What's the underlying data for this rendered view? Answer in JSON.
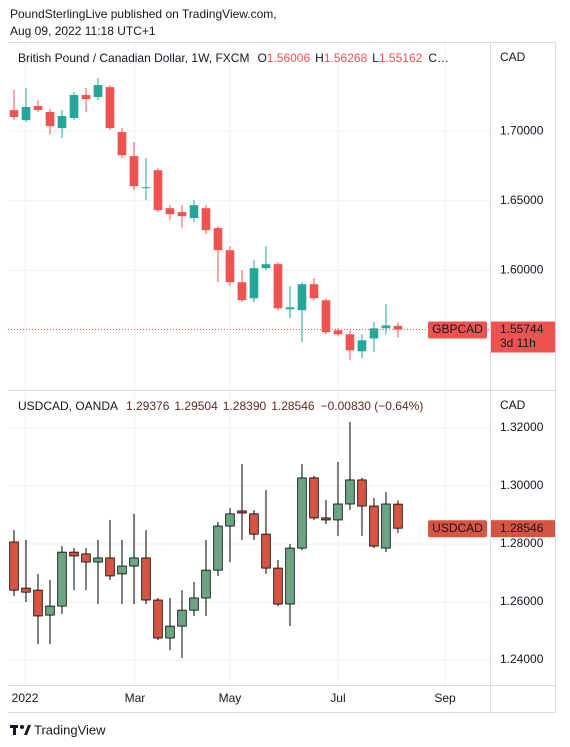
{
  "header": {
    "line1": "PoundSterlingLive published on TradingView.com,",
    "line2": "Aug 09, 2022 11:18 UTC+1"
  },
  "footer": {
    "brand": "TradingView"
  },
  "chart_data": [
    {
      "type": "candlestick",
      "title": "British Pound / Canadian Dollar, 1W, FXCM",
      "legend": [
        {
          "key": "O",
          "value": 1.56006
        },
        {
          "key": "H",
          "value": 1.56268
        },
        {
          "key": "L",
          "value": 1.55162
        }
      ],
      "legend_more": "C…",
      "axis_unit": "CAD",
      "tag": "GBPCAD",
      "countdown": "3d 11h",
      "price_line": true,
      "up_color": "#26a69a",
      "down_color": "#ef5350",
      "border_color": null,
      "text_color": "#ef5350",
      "ylim": [
        1.514,
        1.764
      ],
      "yticks": [
        {
          "value": 1.7,
          "label": "1.70000"
        },
        {
          "value": 1.65,
          "label": "1.65000"
        },
        {
          "value": 1.6,
          "label": "1.60000"
        }
      ],
      "open": [
        1.7151,
        1.7079,
        1.718,
        1.7137,
        1.7022,
        1.7094,
        1.7259,
        1.7245,
        1.7316,
        1.6993,
        1.682,
        1.659,
        1.6719,
        1.6446,
        1.6418,
        1.6375,
        1.6446,
        1.6303,
        1.6144,
        1.5914,
        1.5799,
        1.6015,
        1.6044,
        1.572,
        1.5713,
        1.59,
        1.5785,
        1.5569,
        1.554,
        1.5418,
        1.5511,
        1.5583,
        1.56006
      ],
      "high": [
        1.7295,
        1.7309,
        1.7223,
        1.7158,
        1.7151,
        1.728,
        1.7309,
        1.7381,
        1.7331,
        1.7022,
        1.6921,
        1.6806,
        1.6734,
        1.6468,
        1.6468,
        1.6504,
        1.6468,
        1.6317,
        1.6173,
        1.6001,
        1.6073,
        1.6173,
        1.6058,
        1.5886,
        1.5914,
        1.5943,
        1.5799,
        1.5583,
        1.5569,
        1.554,
        1.5627,
        1.5756,
        1.56268
      ],
      "low": [
        1.7079,
        1.7065,
        1.7137,
        1.6978,
        1.695,
        1.7079,
        1.7137,
        1.7223,
        1.7007,
        1.6806,
        1.6576,
        1.6504,
        1.6418,
        1.636,
        1.6303,
        1.6346,
        1.6259,
        1.5914,
        1.5886,
        1.5771,
        1.5771,
        1.6001,
        1.5713,
        1.5655,
        1.5483,
        1.5785,
        1.554,
        1.5526,
        1.5353,
        1.5368,
        1.5411,
        1.554,
        1.55162
      ],
      "close": [
        1.7101,
        1.7173,
        1.7151,
        1.7036,
        1.7108,
        1.7259,
        1.723,
        1.7331,
        1.7022,
        1.6827,
        1.6604,
        1.6597,
        1.6432,
        1.6403,
        1.6389,
        1.6468,
        1.6288,
        1.6144,
        1.5914,
        1.5785,
        1.6015,
        1.6044,
        1.5727,
        1.5734,
        1.59,
        1.5799,
        1.5555,
        1.554,
        1.5425,
        1.5497,
        1.5583,
        1.5604,
        1.55744
      ]
    },
    {
      "type": "candlestick",
      "title": "USDCAD, OANDA",
      "legend": [
        {
          "value": 1.29376
        },
        {
          "value": 1.29504
        },
        {
          "value": 1.2839,
          "label": "1.28390"
        },
        {
          "value": 1.28546
        }
      ],
      "legend_more": "−0.00830 (−0.64%)",
      "axis_unit": "CAD",
      "tag": "USDCAD",
      "price_line": false,
      "up_color": "#6ba583",
      "down_color": "#d75442",
      "border_color": "#000000",
      "text_color": "#5d2a22",
      "ylim": [
        1.2314,
        1.3331
      ],
      "yticks": [
        {
          "value": 1.32,
          "label": "1.32000"
        },
        {
          "value": 1.3,
          "label": "1.30000"
        },
        {
          "value": 1.28,
          "label": "1.28000"
        },
        {
          "value": 1.26,
          "label": "1.26000"
        },
        {
          "value": 1.24,
          "label": "1.24000"
        }
      ],
      "xlim": [
        -0.5,
        39.67
      ],
      "xticks": [
        {
          "value": 0.92,
          "label": "2022"
        },
        {
          "value": 10.08,
          "label": "Mar"
        },
        {
          "value": 18,
          "label": "May"
        },
        {
          "value": 27,
          "label": "Jul"
        },
        {
          "value": 35.92,
          "label": "Sep"
        }
      ],
      "open": [
        1.2807,
        1.2648,
        1.2641,
        1.2555,
        1.2586,
        1.2772,
        1.2766,
        1.2738,
        1.2752,
        1.2697,
        1.2724,
        1.2752,
        1.2607,
        1.2476,
        1.2517,
        1.2572,
        1.2614,
        1.271,
        1.2862,
        1.2914,
        1.2904,
        1.2834,
        1.2717,
        1.2593,
        1.2786,
        1.3028,
        1.289,
        1.2883,
        1.2938,
        1.3021,
        1.2931,
        1.2786,
        1.29376
      ],
      "high": [
        1.2848,
        1.2814,
        1.2697,
        1.2676,
        1.2793,
        1.2786,
        1.2786,
        1.2814,
        1.2883,
        1.2814,
        1.2904,
        1.2848,
        1.2614,
        1.2614,
        1.2641,
        1.2669,
        1.2814,
        1.2876,
        1.2924,
        1.3076,
        1.2917,
        1.2986,
        1.2745,
        1.28,
        1.3076,
        1.3035,
        1.2952,
        1.3083,
        1.3221,
        1.3028,
        1.2959,
        1.2979,
        1.29504
      ],
      "low": [
        1.2621,
        1.26,
        1.2455,
        1.2455,
        1.2559,
        1.2641,
        1.2641,
        1.2593,
        1.2676,
        1.2593,
        1.2593,
        1.2593,
        1.2469,
        1.2434,
        1.2407,
        1.2552,
        1.2552,
        1.269,
        1.2738,
        1.2814,
        1.2814,
        1.2697,
        1.2586,
        1.2517,
        1.2779,
        1.2883,
        1.2869,
        1.2828,
        1.2917,
        1.2828,
        1.2786,
        1.2772,
        1.2839
      ],
      "close": [
        1.2641,
        1.2634,
        1.2552,
        1.2586,
        1.2772,
        1.2759,
        1.2738,
        1.2752,
        1.269,
        1.2724,
        1.2752,
        1.2607,
        1.2476,
        1.2517,
        1.2572,
        1.2614,
        1.271,
        1.2862,
        1.2904,
        1.2907,
        1.2834,
        1.2717,
        1.2593,
        1.2786,
        1.3028,
        1.289,
        1.2883,
        1.2938,
        1.3021,
        1.2931,
        1.2793,
        1.2938,
        1.28546
      ]
    }
  ]
}
